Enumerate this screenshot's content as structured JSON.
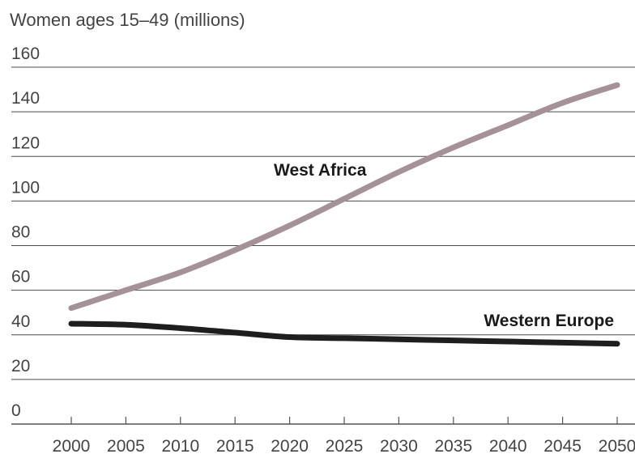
{
  "chart_data": {
    "type": "line",
    "title": "Women ages 15–49 (millions)",
    "xlabel": "",
    "ylabel": "",
    "x": [
      2000,
      2005,
      2010,
      2015,
      2020,
      2025,
      2030,
      2035,
      2040,
      2045,
      2050
    ],
    "x_tick_labels": [
      "2000",
      "2005",
      "2010",
      "2015",
      "2020",
      "2025",
      "2030",
      "2035",
      "2040",
      "2045",
      "2050"
    ],
    "y_tick_labels": [
      "0",
      "20",
      "40",
      "60",
      "80",
      "100",
      "120",
      "140",
      "160"
    ],
    "y_ticks": [
      0,
      20,
      40,
      60,
      80,
      100,
      120,
      140,
      160
    ],
    "xlim": [
      2000,
      2050
    ],
    "ylim": [
      0,
      160
    ],
    "grid": "horizontal",
    "series": [
      {
        "name": "West Africa",
        "color": "#a59298",
        "values": [
          52,
          60,
          68,
          78,
          89,
          101,
          113,
          124,
          134,
          144,
          152
        ]
      },
      {
        "name": "Western Europe",
        "color": "#1e1e1e",
        "values": [
          45,
          44.5,
          43,
          41,
          39,
          38.5,
          38,
          37.5,
          37,
          36.5,
          36
        ]
      }
    ]
  }
}
